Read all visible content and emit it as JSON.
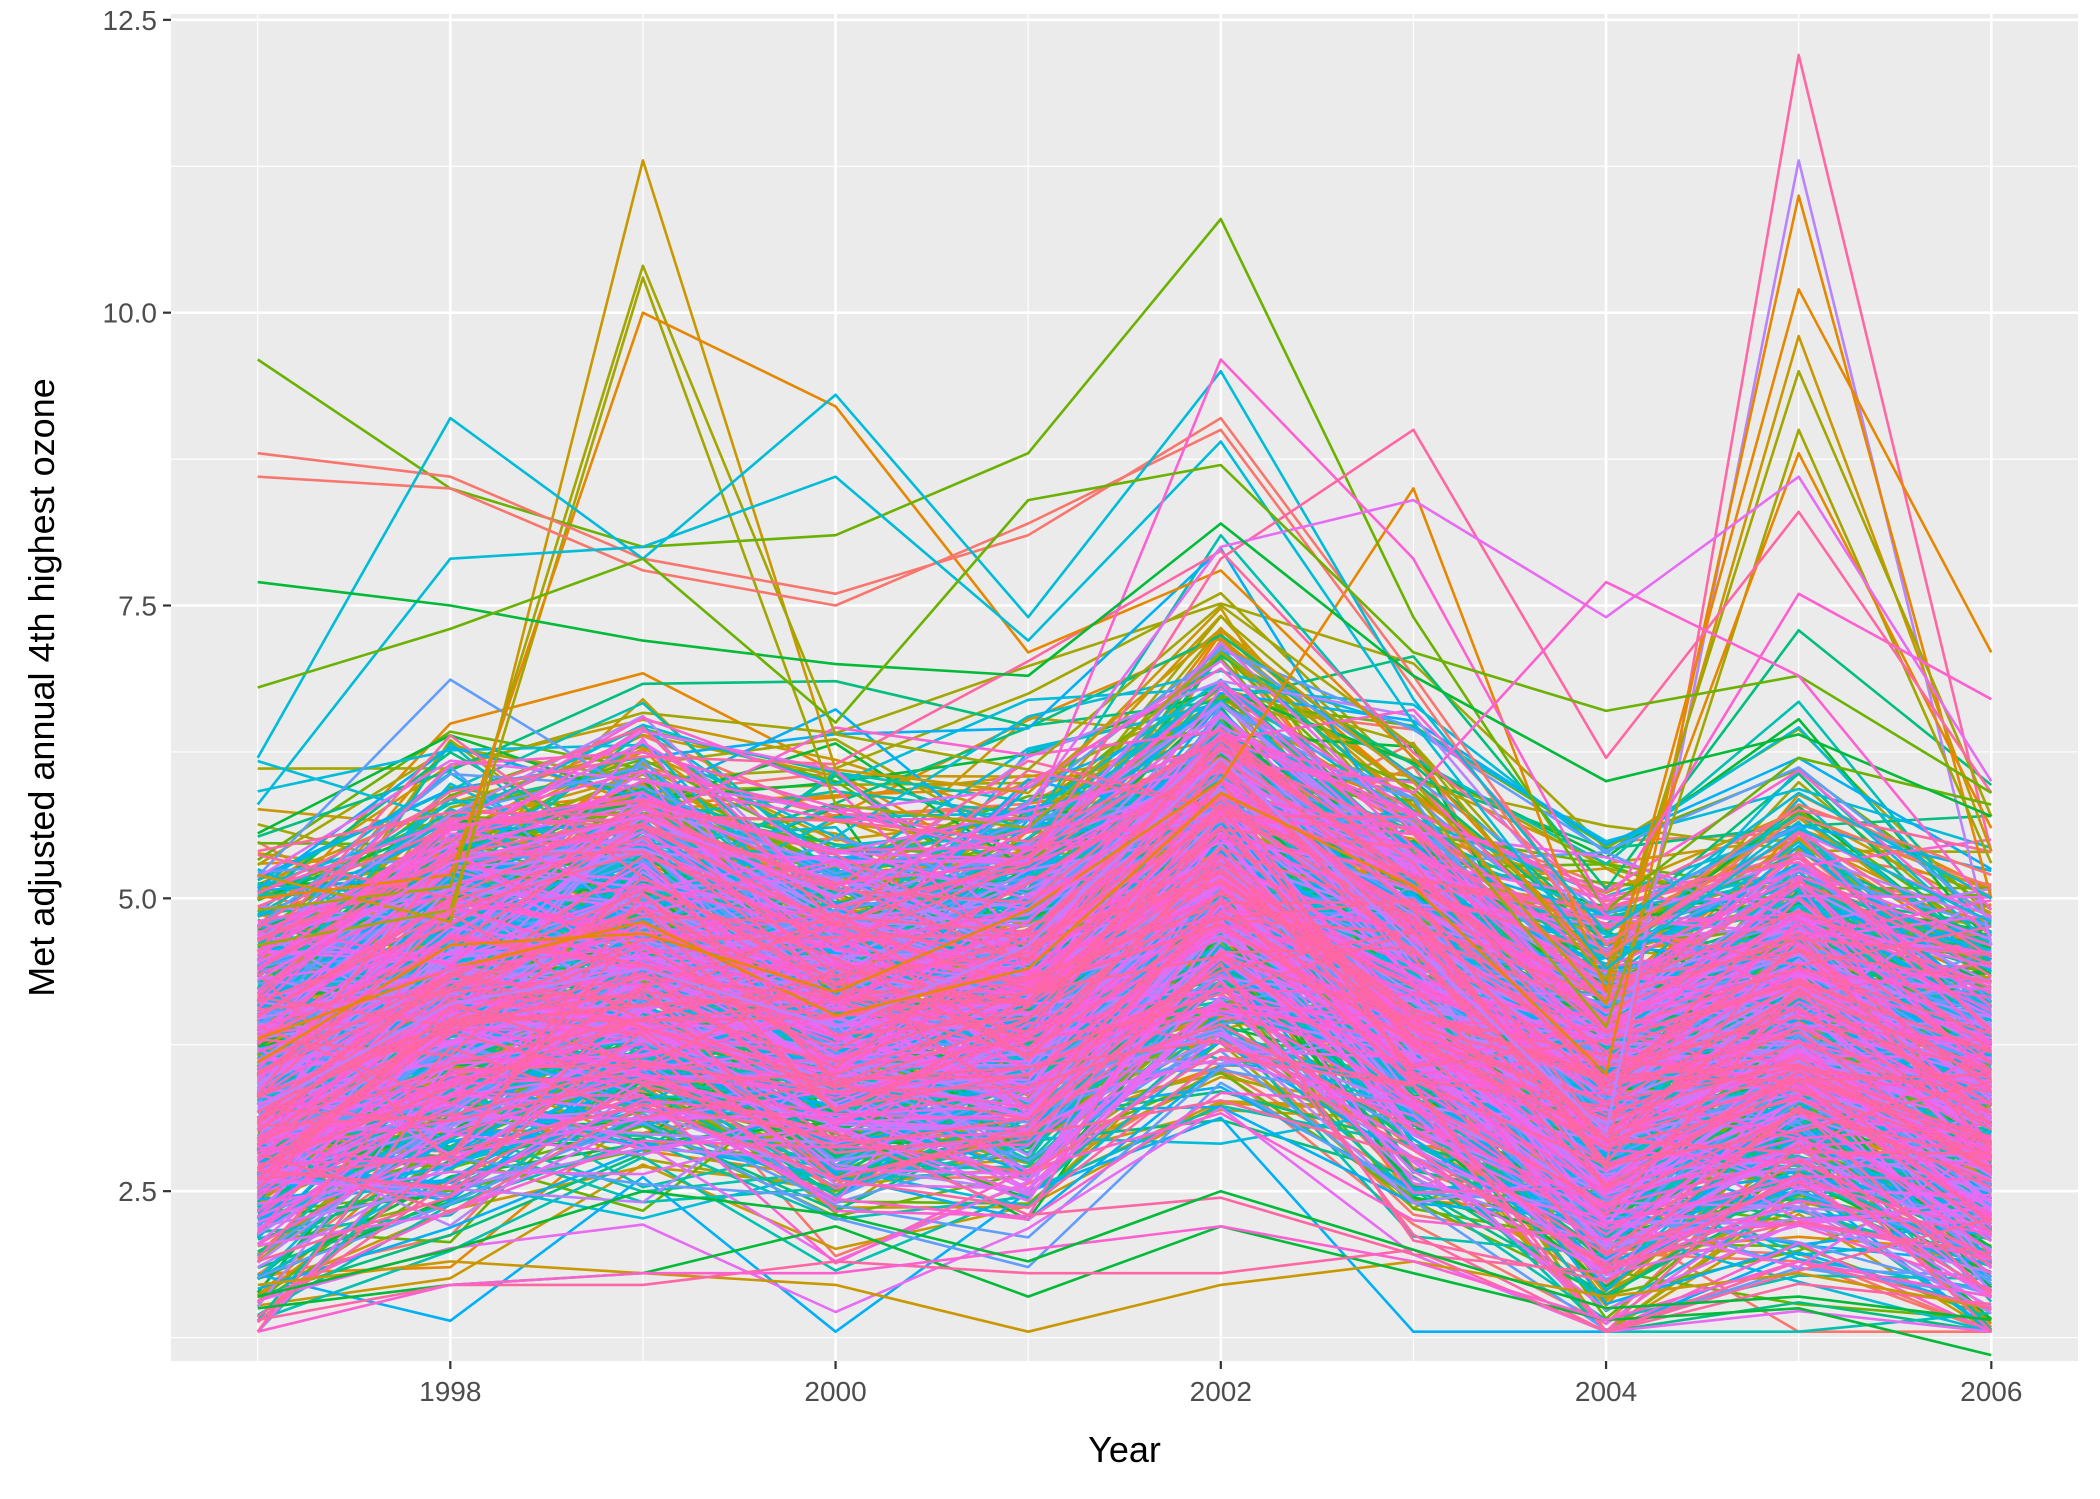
{
  "chart_data": {
    "type": "line",
    "xlabel": "Year",
    "ylabel": "Met adjusted annual 4th highest ozone",
    "x": [
      1997,
      1998,
      1999,
      2000,
      2001,
      2002,
      2003,
      2004,
      2005,
      2006
    ],
    "xlim": [
      1996.55,
      2006.45
    ],
    "ylim": [
      1.05,
      12.55
    ],
    "x_ticks": [
      1998,
      2000,
      2002,
      2004,
      2006
    ],
    "x_tick_labels": [
      "1998",
      "2000",
      "2002",
      "2004",
      "2006"
    ],
    "y_ticks": [
      2.5,
      5.0,
      7.5,
      10.0,
      12.5
    ],
    "y_tick_labels": [
      "2.5",
      "5.0",
      "7.5",
      "10.0",
      "12.5"
    ],
    "grid": true,
    "legend": "none",
    "background_color": "#ebebeb",
    "palette": [
      "#F8766D",
      "#E58700",
      "#C99800",
      "#A3A500",
      "#6BB100",
      "#00BA38",
      "#00BF7D",
      "#00C0AF",
      "#00BCD8",
      "#00B0F6",
      "#619CFF",
      "#B983FF",
      "#E76BF3",
      "#FD61D1",
      "#FF67A4"
    ],
    "bulk_series_count": 760,
    "mean_profile": [
      3.5,
      4.3,
      4.6,
      4.1,
      4.2,
      5.3,
      4.3,
      3.3,
      3.9,
      3.2
    ],
    "series": [
      {
        "color": "#FF67A4",
        "values": [
          2.9,
          3.9,
          4.6,
          3.6,
          4.2,
          5.8,
          4.9,
          2.7,
          12.2,
          5.4
        ]
      },
      {
        "color": "#B983FF",
        "values": [
          3.2,
          4.1,
          4.4,
          3.9,
          4.6,
          6.2,
          4.6,
          3.0,
          11.3,
          4.6
        ]
      },
      {
        "color": "#E58700",
        "values": [
          3.8,
          4.4,
          4.8,
          4.0,
          4.4,
          5.9,
          5.1,
          3.5,
          11.0,
          5.0
        ]
      },
      {
        "color": "#E58700",
        "values": [
          3.6,
          4.6,
          4.7,
          4.2,
          4.9,
          6.0,
          8.5,
          4.2,
          10.2,
          7.1
        ]
      },
      {
        "color": "#C99800",
        "values": [
          5.2,
          4.8,
          11.3,
          6.1,
          5.9,
          7.3,
          6.0,
          4.1,
          9.8,
          5.4
        ]
      },
      {
        "color": "#A3A500",
        "values": [
          4.9,
          5.1,
          10.4,
          6.4,
          6.1,
          7.5,
          6.3,
          4.3,
          9.5,
          5.7
        ]
      },
      {
        "color": "#A3A500",
        "values": [
          4.6,
          4.9,
          10.3,
          5.8,
          5.6,
          7.1,
          5.9,
          3.9,
          9.0,
          5.3
        ]
      },
      {
        "color": "#E58700",
        "values": [
          5.0,
          5.2,
          10.0,
          9.2,
          7.1,
          7.8,
          6.2,
          4.4,
          8.8,
          5.6
        ]
      },
      {
        "color": "#6BB100",
        "values": [
          9.6,
          8.5,
          8.0,
          8.1,
          8.8,
          10.8,
          7.4,
          4.9,
          6.2,
          5.8
        ]
      },
      {
        "color": "#F8766D",
        "values": [
          8.8,
          8.6,
          7.9,
          7.6,
          8.1,
          9.1,
          6.9,
          4.6,
          5.8,
          5.2
        ]
      },
      {
        "color": "#F8766D",
        "values": [
          8.6,
          8.5,
          7.8,
          7.5,
          8.2,
          9.0,
          6.8,
          4.5,
          5.7,
          5.1
        ]
      },
      {
        "color": "#00BCD8",
        "values": [
          6.2,
          9.1,
          7.9,
          9.3,
          7.4,
          9.5,
          6.7,
          4.7,
          5.9,
          5.0
        ]
      },
      {
        "color": "#00BCD8",
        "values": [
          5.8,
          7.9,
          8.0,
          8.6,
          7.2,
          8.9,
          6.5,
          4.4,
          5.6,
          4.8
        ]
      },
      {
        "color": "#FD61D1",
        "values": [
          4.4,
          5.6,
          5.9,
          5.1,
          5.6,
          9.6,
          7.9,
          4.9,
          7.6,
          6.7
        ]
      },
      {
        "color": "#FF67A4",
        "values": [
          4.0,
          4.9,
          5.4,
          4.6,
          5.3,
          7.9,
          9.0,
          6.2,
          8.3,
          5.9
        ]
      },
      {
        "color": "#E76BF3",
        "values": [
          4.3,
          5.3,
          5.7,
          5.0,
          5.8,
          8.0,
          8.4,
          7.4,
          8.6,
          6.0
        ]
      },
      {
        "color": "#00BA38",
        "values": [
          7.7,
          7.5,
          7.2,
          7.0,
          6.9,
          8.2,
          6.9,
          6.0,
          6.4,
          5.7
        ]
      },
      {
        "color": "#6BB100",
        "values": [
          6.8,
          7.3,
          7.9,
          6.5,
          8.4,
          8.7,
          7.1,
          6.6,
          6.9,
          5.9
        ]
      },
      {
        "color": "#FD61D1",
        "values": [
          3.9,
          4.4,
          4.6,
          4.1,
          4.8,
          6.4,
          5.9,
          7.7,
          6.9,
          4.9
        ]
      },
      {
        "color": "#C99800",
        "values": [
          1.7,
          1.9,
          1.8,
          1.7,
          1.3,
          1.7,
          1.9,
          1.6,
          1.8,
          1.5
        ]
      },
      {
        "color": "#00BA38",
        "values": [
          1.5,
          1.7,
          1.8,
          2.2,
          1.6,
          2.2,
          1.8,
          1.4,
          1.5,
          1.1
        ]
      },
      {
        "color": "#FF67A4",
        "values": [
          1.4,
          1.7,
          1.7,
          1.9,
          1.8,
          1.8,
          2.0,
          1.3,
          1.9,
          1.5
        ]
      },
      {
        "color": "#FD61D1",
        "values": [
          1.3,
          1.7,
          1.8,
          1.8,
          2.0,
          2.2,
          1.9,
          1.4,
          1.9,
          1.6
        ]
      },
      {
        "color": "#00BA38",
        "values": [
          1.6,
          2.0,
          2.5,
          2.3,
          1.9,
          2.5,
          2.0,
          1.5,
          1.6,
          1.4
        ]
      }
    ]
  }
}
